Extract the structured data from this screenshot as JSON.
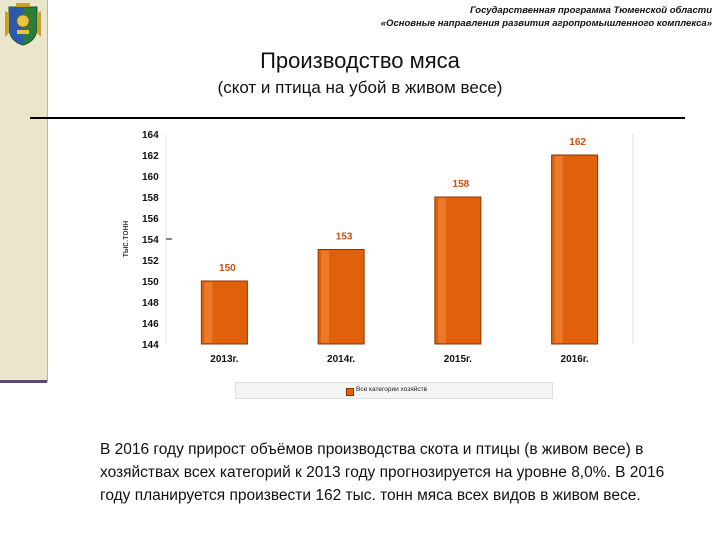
{
  "header": {
    "program_line1": "Государственная программа Тюменской области",
    "program_line2": "«Основные направления развития агропромышленного комплекса»"
  },
  "slide": {
    "title": "Производство мяса",
    "subtitle": "(скот и птица на убой в живом весе)",
    "body_text": "В 2016 году прирост объёмов производства скота и птицы (в живом весе) в хозяйствах всех категорий к 2013 году прогнозируется на уровне 8,0%. В 2016 году планируется произвести 162 тыс. тонн мяса всех видов в живом весе."
  },
  "icons": [
    "coat-of-arms-icon"
  ],
  "colors": {
    "bar": "#e0600c",
    "bar_dark": "#8a3500",
    "value_label": "#c85010",
    "sidebar": "#e9e6c9"
  },
  "chart_data": {
    "type": "bar",
    "categories": [
      "2013г.",
      "2014г.",
      "2015г.",
      "2016г."
    ],
    "series": [
      {
        "name": "Все категории хозяйств",
        "values": [
          150,
          153,
          158,
          162
        ]
      }
    ],
    "data_labels": [
      "150",
      "153",
      "158",
      "162"
    ],
    "ylabel": "тыс.тонн",
    "ylim": [
      144,
      164
    ],
    "yticks": [
      144,
      146,
      148,
      150,
      152,
      154,
      156,
      158,
      160,
      162,
      164
    ],
    "legend_position": "bottom",
    "grid": false
  }
}
